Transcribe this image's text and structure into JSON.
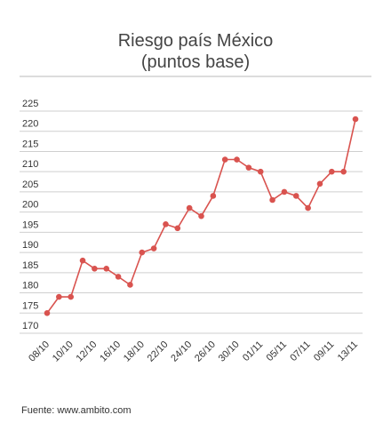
{
  "title_line1": "Riesgo país México",
  "title_line2": "(puntos base)",
  "source": "Fuente: www.ambito.com",
  "colors": {
    "line": "#d9534f",
    "grid": "#cfcfcf",
    "text": "#444444"
  },
  "chart_data": {
    "type": "line",
    "title": "Riesgo país México (puntos base)",
    "xlabel": "",
    "ylabel": "",
    "ylim": [
      170,
      225
    ],
    "yticks": [
      170,
      175,
      180,
      185,
      190,
      195,
      200,
      205,
      210,
      215,
      220,
      225
    ],
    "xtick_labels": [
      "08/10",
      "10/10",
      "12/10",
      "16/10",
      "18/10",
      "22/10",
      "24/10",
      "26/10",
      "30/10",
      "01/11",
      "05/11",
      "07/11",
      "09/11",
      "13/11"
    ],
    "grid": true,
    "series": [
      {
        "values": [
          175,
          179,
          179,
          188,
          186,
          186,
          184,
          182,
          190,
          191,
          197,
          196,
          201,
          199,
          204,
          213,
          213,
          211,
          210,
          203,
          205,
          204,
          201,
          207,
          210,
          210,
          223
        ]
      }
    ]
  }
}
